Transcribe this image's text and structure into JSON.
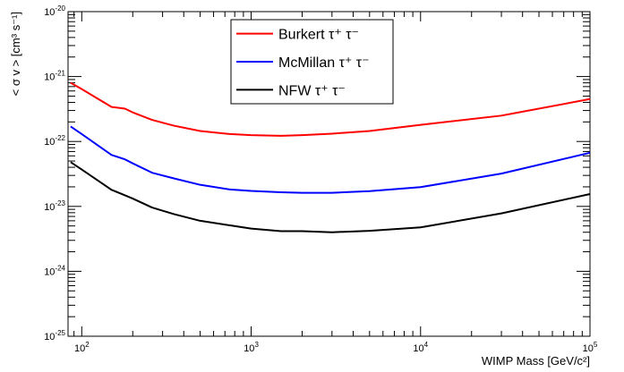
{
  "chart_data": {
    "type": "line",
    "title": "",
    "xlabel": "WIMP Mass [GeV/c²]",
    "ylabel": "< σ v > [cm³ s⁻¹]",
    "xscale": "log",
    "yscale": "log",
    "xlim": [
      83,
      100000
    ],
    "ylim": [
      1e-25,
      1e-20
    ],
    "x_tick_labels": [
      {
        "value": 100,
        "base": "10",
        "exp": "2"
      },
      {
        "value": 1000,
        "base": "10",
        "exp": "3"
      },
      {
        "value": 10000,
        "base": "10",
        "exp": "4"
      },
      {
        "value": 100000,
        "base": "10",
        "exp": "5"
      }
    ],
    "y_tick_labels": [
      {
        "value": 1e-25,
        "base": "10",
        "exp": "-25"
      },
      {
        "value": 1e-24,
        "base": "10",
        "exp": "-24"
      },
      {
        "value": 1e-23,
        "base": "10",
        "exp": "-23"
      },
      {
        "value": 1e-22,
        "base": "10",
        "exp": "-22"
      },
      {
        "value": 1e-21,
        "base": "10",
        "exp": "-21"
      },
      {
        "value": 1e-20,
        "base": "10",
        "exp": "-20"
      }
    ],
    "grid": false,
    "legend_position": "top-center",
    "series": [
      {
        "name": "Burkert τ⁺ τ⁻",
        "color": "#ff0000",
        "x": [
          86,
          100,
          150,
          180,
          200,
          260,
          350,
          500,
          750,
          1000,
          1500,
          2000,
          3000,
          5000,
          10000,
          30000,
          100000
        ],
        "y": [
          8e-22,
          6.4e-22,
          3.4e-22,
          3.2e-22,
          2.8e-22,
          2.15e-22,
          1.75e-22,
          1.45e-22,
          1.3e-22,
          1.25e-22,
          1.22e-22,
          1.25e-22,
          1.32e-22,
          1.45e-22,
          1.8e-22,
          2.5e-22,
          4.5e-22
        ]
      },
      {
        "name": "McMillan τ⁺ τ⁻",
        "color": "#0000ff",
        "x": [
          86,
          100,
          150,
          180,
          200,
          260,
          350,
          500,
          750,
          1000,
          1500,
          2000,
          3000,
          5000,
          10000,
          30000,
          100000
        ],
        "y": [
          1.7e-22,
          1.3e-22,
          6.2e-23,
          5.3e-23,
          4.6e-23,
          3.3e-23,
          2.7e-23,
          2.15e-23,
          1.82e-23,
          1.73e-23,
          1.65e-23,
          1.62e-23,
          1.62e-23,
          1.72e-23,
          1.98e-23,
          3.2e-23,
          6.7e-23
        ]
      },
      {
        "name": "NFW τ⁺ τ⁻",
        "color": "#000000",
        "x": [
          86,
          100,
          150,
          180,
          200,
          260,
          350,
          500,
          750,
          1000,
          1500,
          2000,
          3000,
          5000,
          10000,
          30000,
          100000
        ],
        "y": [
          4.8e-23,
          3.7e-23,
          1.8e-23,
          1.48e-23,
          1.32e-23,
          9.6e-24,
          7.6e-24,
          6e-24,
          5.1e-24,
          4.55e-24,
          4.15e-24,
          4.15e-24,
          4e-24,
          4.2e-24,
          4.75e-24,
          7.8e-24,
          1.55e-23
        ]
      }
    ]
  }
}
